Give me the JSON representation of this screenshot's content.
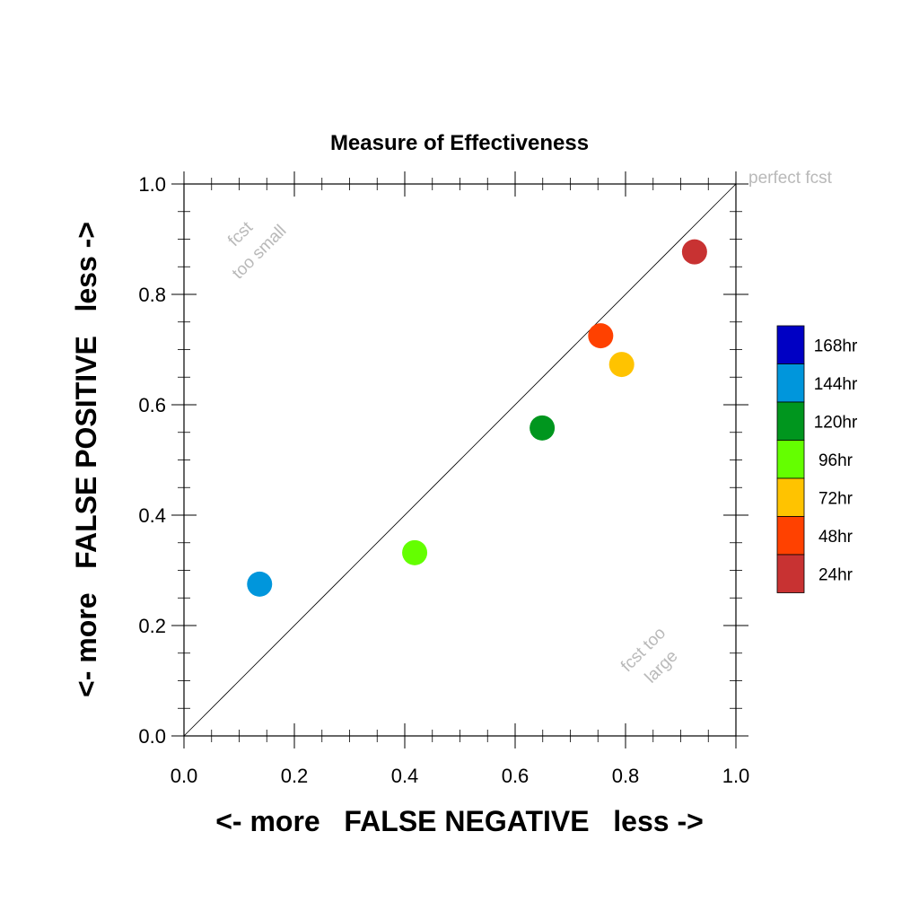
{
  "chart_data": {
    "type": "scatter",
    "title": "Measure of Effectiveness",
    "xlabel": "<- more   FALSE NEGATIVE   less ->",
    "ylabel": "<- more   FALSE POSITIVE   less ->",
    "xlim": [
      0.0,
      1.0
    ],
    "ylim": [
      0.0,
      1.0
    ],
    "xticks": [
      "0.0",
      "0.2",
      "0.4",
      "0.6",
      "0.8",
      "1.0"
    ],
    "yticks": [
      "0.0",
      "0.2",
      "0.4",
      "0.6",
      "0.8",
      "1.0"
    ],
    "grid": false,
    "diagonal_line": true,
    "legend_position": "right",
    "annotations": {
      "perfect": "perfect fcst",
      "small_line1": "fcst",
      "small_line2": "too small",
      "large_line1": "fcst too",
      "large_line2": "large"
    },
    "legend": [
      {
        "label": "168hr",
        "color": "#0000c4"
      },
      {
        "label": "144hr",
        "color": "#0096dc"
      },
      {
        "label": "120hr",
        "color": "#00961e"
      },
      {
        "label": "96hr",
        "color": "#64ff00"
      },
      {
        "label": "72hr",
        "color": "#ffc300"
      },
      {
        "label": "48hr",
        "color": "#ff4100"
      },
      {
        "label": "24hr",
        "color": "#c83232"
      }
    ],
    "points": [
      {
        "series": "24hr",
        "x": 0.925,
        "y": 0.877,
        "color": "#c83232"
      },
      {
        "series": "48hr",
        "x": 0.755,
        "y": 0.725,
        "color": "#ff4100"
      },
      {
        "series": "72hr",
        "x": 0.793,
        "y": 0.673,
        "color": "#ffc300"
      },
      {
        "series": "96hr",
        "x": 0.418,
        "y": 0.332,
        "color": "#64ff00"
      },
      {
        "series": "120hr",
        "x": 0.649,
        "y": 0.558,
        "color": "#00961e"
      },
      {
        "series": "144hr",
        "x": 0.137,
        "y": 0.275,
        "color": "#0096dc"
      }
    ]
  }
}
